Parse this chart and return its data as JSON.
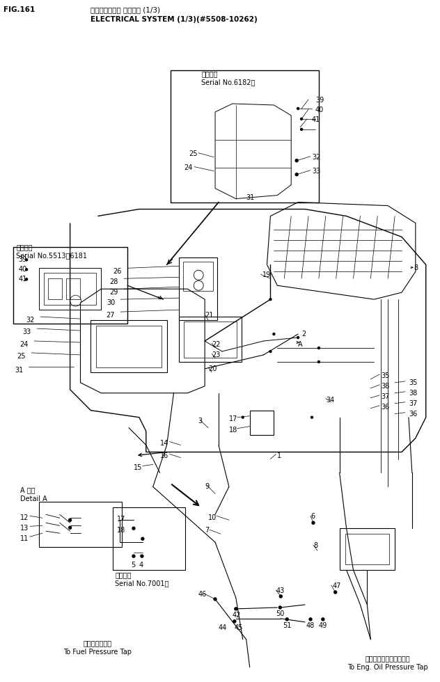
{
  "title_jp": "エレクトリカル システム (1/3)",
  "title_en": "ELECTRICAL SYSTEM (1/3)(#5508-10262)",
  "fig_label": "FIG.161",
  "bg": "#ffffff",
  "lc": "#000000",
  "fig_w": 6.32,
  "fig_h": 9.8,
  "dpi": 100
}
